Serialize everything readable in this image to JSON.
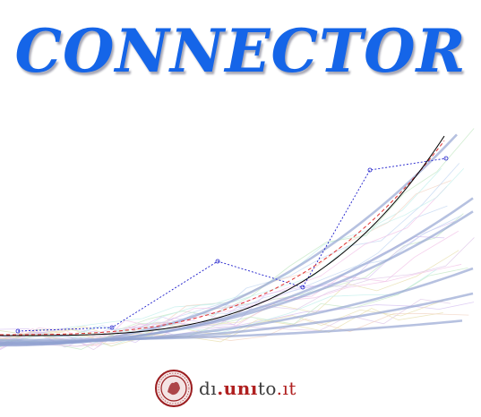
{
  "title": "CONNECTOR",
  "colors": {
    "title": "#1565e8",
    "black_curve": "#000000",
    "red_dashed": "#e03030",
    "blue_dotted": "#2020cc",
    "thick_lines": "#8f9fd0",
    "seal": "#9b1d20"
  },
  "footer": {
    "seal_icon": "university-seal",
    "brand_parts": [
      "dı",
      ".unı",
      "to",
      ".ıt"
    ]
  }
}
